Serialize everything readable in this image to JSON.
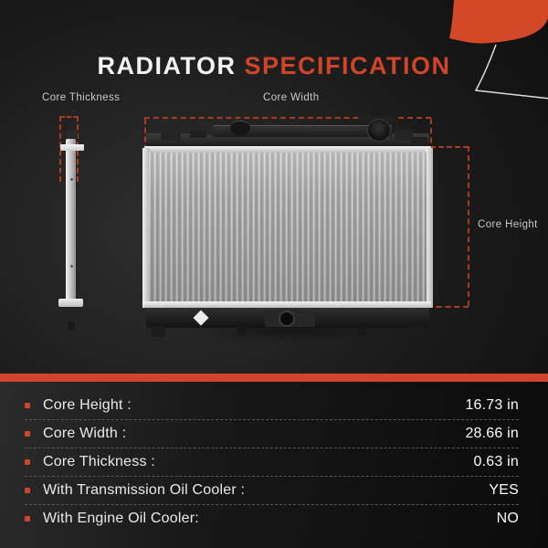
{
  "title": {
    "primary": "RADIATOR",
    "secondary": "SPECIFICATION"
  },
  "diagram": {
    "core_thickness_label": "Core Thickness",
    "core_width_label": "Core Width",
    "core_height_label": "Core Height"
  },
  "specs": {
    "rows": [
      {
        "label": "Core Height :",
        "value": "16.73 in"
      },
      {
        "label": "Core Width :",
        "value": "28.66 in"
      },
      {
        "label": "Core Thickness :",
        "value": "0.63 in"
      },
      {
        "label": "With Transmission Oil Cooler :",
        "value": "YES"
      },
      {
        "label": "With Engine Oil Cooler:",
        "value": "NO"
      }
    ]
  },
  "colors": {
    "accent": "#d04527",
    "dash": "#a93c1f",
    "title_primary": "#f3f3f3"
  }
}
